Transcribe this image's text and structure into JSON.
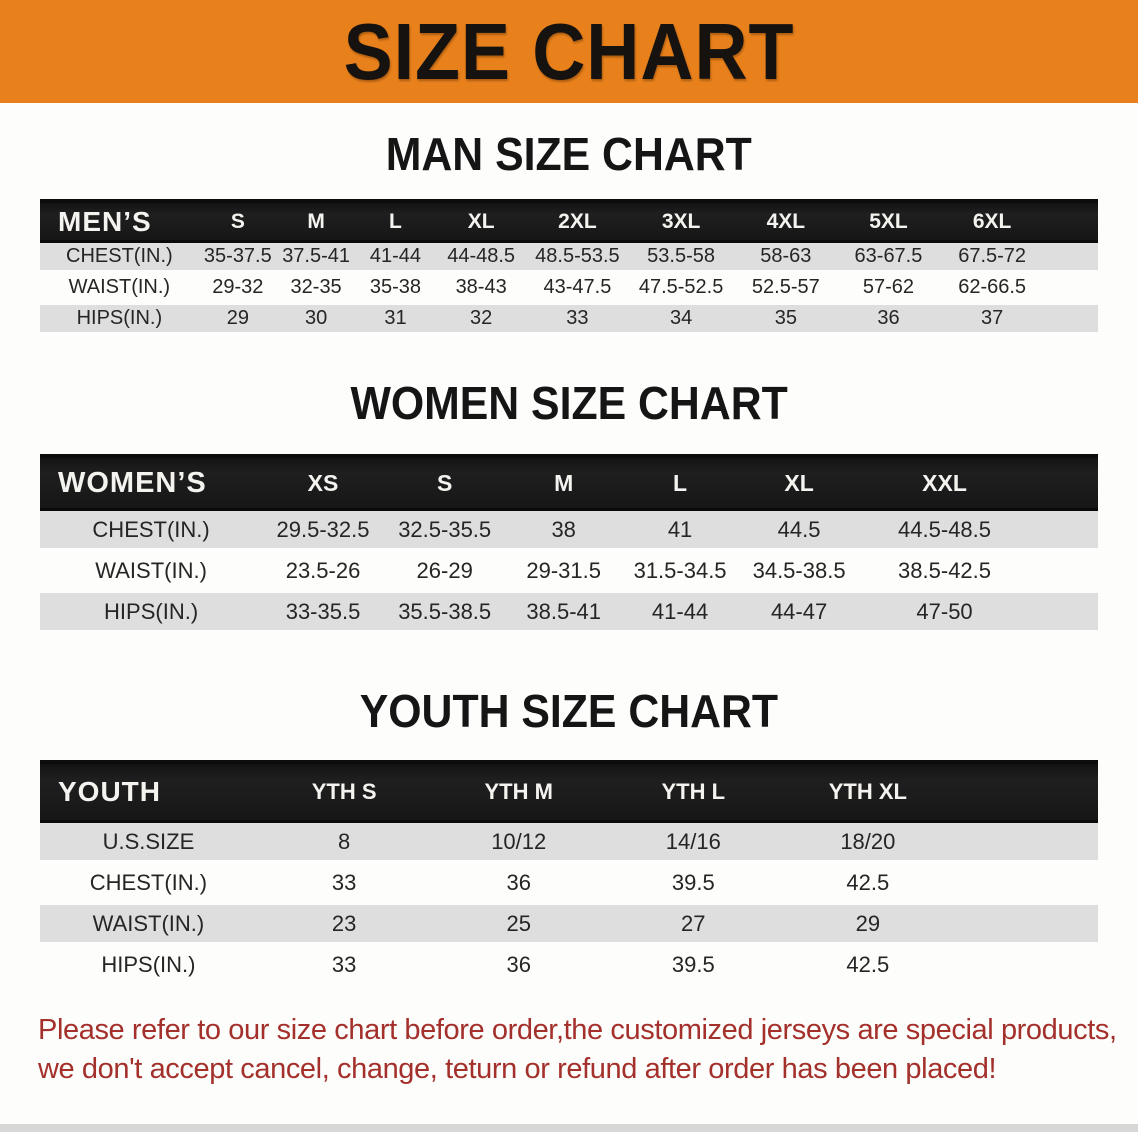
{
  "banner": {
    "title": "SIZE CHART"
  },
  "colors": {
    "banner_bg": "#E8801B",
    "header_bar": "#161616",
    "row_shade": "#DEDEDE",
    "disclaimer_red": "#A4302B"
  },
  "sections": [
    {
      "heading": "MAN SIZE CHART",
      "table": {
        "label": "MEN’S",
        "columns": [
          "S",
          "M",
          "L",
          "XL",
          "2XL",
          "3XL",
          "4XL",
          "5XL",
          "6XL"
        ],
        "rows": [
          {
            "label": "CHEST(IN.)",
            "values": [
              "35-37.5",
              "37.5-41",
              "41-44",
              "44-48.5",
              "48.5-53.5",
              "53.5-58",
              "58-63",
              "63-67.5",
              "67.5-72"
            ]
          },
          {
            "label": "WAIST(IN.)",
            "values": [
              "29-32",
              "32-35",
              "35-38",
              "38-43",
              "43-47.5",
              "47.5-52.5",
              "52.5-57",
              "57-62",
              "62-66.5"
            ]
          },
          {
            "label": "HIPS(IN.)",
            "values": [
              "29",
              "30",
              "31",
              "32",
              "33",
              "34",
              "35",
              "36",
              "37"
            ]
          }
        ]
      }
    },
    {
      "heading": "WOMEN SIZE CHART",
      "table": {
        "label": "WOMEN’S",
        "columns": [
          "XS",
          "S",
          "M",
          "L",
          "XL",
          "XXL"
        ],
        "rows": [
          {
            "label": "CHEST(IN.)",
            "values": [
              "29.5-32.5",
              "32.5-35.5",
              "38",
              "41",
              "44.5",
              "44.5-48.5"
            ]
          },
          {
            "label": "WAIST(IN.)",
            "values": [
              "23.5-26",
              "26-29",
              "29-31.5",
              "31.5-34.5",
              "34.5-38.5",
              "38.5-42.5"
            ]
          },
          {
            "label": "HIPS(IN.)",
            "values": [
              "33-35.5",
              "35.5-38.5",
              "38.5-41",
              "41-44",
              "44-47",
              "47-50"
            ]
          }
        ]
      }
    },
    {
      "heading": "YOUTH SIZE CHART",
      "table": {
        "label": "YOUTH",
        "columns": [
          "YTH S",
          "YTH M",
          "YTH L",
          "YTH XL"
        ],
        "rows": [
          {
            "label": "U.S.SIZE",
            "values": [
              "8",
              "10/12",
              "14/16",
              "18/20"
            ]
          },
          {
            "label": "CHEST(IN.)",
            "values": [
              "33",
              "36",
              "39.5",
              "42.5"
            ]
          },
          {
            "label": "WAIST(IN.)",
            "values": [
              "23",
              "25",
              "27",
              "29"
            ]
          },
          {
            "label": "HIPS(IN.)",
            "values": [
              "33",
              "36",
              "39.5",
              "42.5"
            ]
          }
        ]
      }
    }
  ],
  "disclaimer": {
    "line1": "Please refer to our size chart before order,the customized jerseys are special products,",
    "line2": "we don't accept cancel, change, teturn or refund after order has been placed!"
  }
}
